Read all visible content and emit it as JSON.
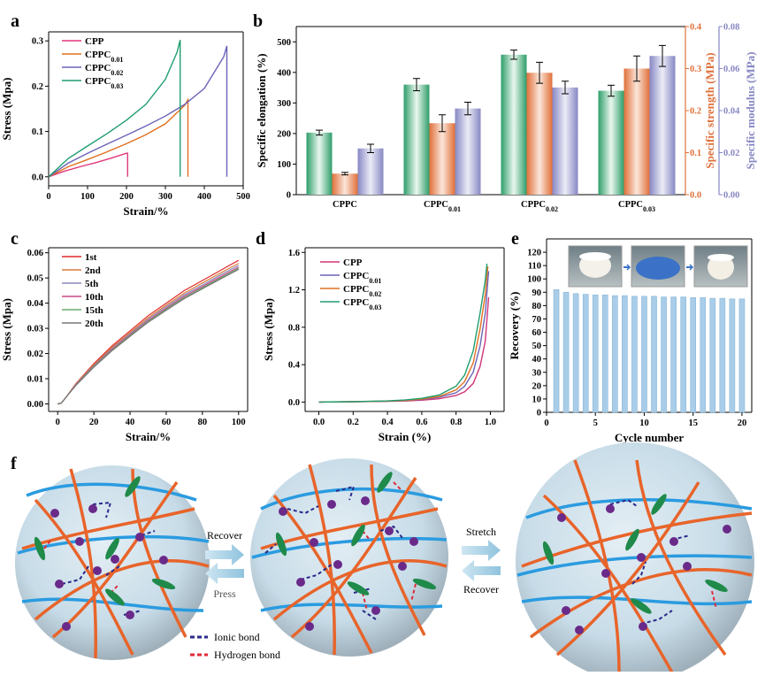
{
  "figure": {
    "panel_letters": [
      "a",
      "b",
      "c",
      "d",
      "e",
      "f"
    ]
  },
  "chart_data": [
    {
      "panel": "a",
      "type": "line",
      "xlabel": "Strain/%",
      "ylabel": "Stress (Mpa)",
      "xlim": [
        0,
        500
      ],
      "ylim": [
        -0.02,
        0.32
      ],
      "xticks": [
        0,
        100,
        200,
        300,
        400,
        500
      ],
      "yticks": [
        0.0,
        0.1,
        0.2,
        0.3
      ],
      "legend_position": "top-left",
      "series": [
        {
          "name": "CPP",
          "color": "#e0387a",
          "x": [
            0,
            40,
            80,
            120,
            160,
            200,
            203,
            203
          ],
          "y": [
            0,
            0.012,
            0.022,
            0.031,
            0.041,
            0.052,
            0.052,
            0.0
          ]
        },
        {
          "name": "CPPC0.01",
          "color": "#e07020",
          "x": [
            0,
            50,
            100,
            150,
            200,
            250,
            300,
            350,
            358,
            358
          ],
          "y": [
            0,
            0.022,
            0.038,
            0.055,
            0.073,
            0.093,
            0.117,
            0.158,
            0.17,
            0.0
          ]
        },
        {
          "name": "CPPC0.02",
          "color": "#6a63b8",
          "x": [
            0,
            50,
            100,
            150,
            200,
            250,
            300,
            350,
            400,
            450,
            458,
            458
          ],
          "y": [
            0,
            0.03,
            0.052,
            0.072,
            0.092,
            0.112,
            0.134,
            0.16,
            0.195,
            0.265,
            0.289,
            0.0
          ]
        },
        {
          "name": "CPPC0.03",
          "color": "#1f9e6e",
          "x": [
            0,
            50,
            100,
            150,
            200,
            250,
            300,
            330,
            338,
            338
          ],
          "y": [
            0,
            0.04,
            0.068,
            0.095,
            0.125,
            0.16,
            0.215,
            0.275,
            0.302,
            0.0
          ]
        }
      ]
    },
    {
      "panel": "b",
      "type": "bar",
      "categories": [
        "CPPC",
        "CPPC",
        "CPPC",
        "CPPC"
      ],
      "category_subscripts": [
        "",
        "0.01",
        "0.02",
        "0.03"
      ],
      "ylabel_left": "Specific elongation (%)",
      "ylabel_right1": "Specific strength (MPa)",
      "ylabel_right2": "Specific modulus (MPa)",
      "ylim_left": [
        0,
        550
      ],
      "ylim_right1": [
        0,
        0.4
      ],
      "ylim_right2": [
        0,
        0.08
      ],
      "yticks_left": [
        0,
        100,
        200,
        300,
        400,
        500
      ],
      "yticks_right1": [
        0.0,
        0.1,
        0.2,
        0.3,
        0.4
      ],
      "yticks_right2": [
        0.0,
        0.02,
        0.04,
        0.06,
        0.08
      ],
      "series": [
        {
          "name": "Specific elongation",
          "color": "#2e9e6a",
          "axis": "left",
          "values": [
            203,
            360,
            458,
            340
          ],
          "errors": [
            8,
            20,
            15,
            18
          ]
        },
        {
          "name": "Specific strength",
          "color": "#e0703a",
          "axis": "right1",
          "values": [
            0.05,
            0.17,
            0.29,
            0.3
          ],
          "errors": [
            0.003,
            0.02,
            0.025,
            0.03
          ]
        },
        {
          "name": "Specific modulus",
          "color": "#8787c4",
          "axis": "right2",
          "values": [
            0.022,
            0.041,
            0.051,
            0.066
          ],
          "errors": [
            0.002,
            0.003,
            0.003,
            0.005
          ]
        }
      ]
    },
    {
      "panel": "c",
      "type": "line",
      "xlabel": "Strain/%",
      "ylabel": "Stress (Mpa)",
      "xlim": [
        -5,
        105
      ],
      "ylim": [
        -0.003,
        0.062
      ],
      "xticks": [
        0,
        20,
        40,
        60,
        80,
        100
      ],
      "yticks": [
        0.0,
        0.01,
        0.02,
        0.03,
        0.04,
        0.05,
        0.06
      ],
      "ytick_labels": [
        "0.00",
        "0.01",
        "0.02",
        "0.03",
        "0.04",
        "0.05",
        "0.06"
      ],
      "legend_position": "top-left",
      "x": [
        0,
        2,
        5,
        10,
        20,
        30,
        40,
        50,
        60,
        70,
        80,
        90,
        100
      ],
      "series": [
        {
          "name": "1st",
          "color": "#e02a2a",
          "y": [
            0,
            0.0003,
            0.003,
            0.008,
            0.016,
            0.023,
            0.029,
            0.035,
            0.04,
            0.045,
            0.049,
            0.053,
            0.057
          ]
        },
        {
          "name": "2nd",
          "color": "#d87a3a",
          "y": [
            0,
            0.0003,
            0.003,
            0.0078,
            0.0156,
            0.0224,
            0.0283,
            0.0342,
            0.0392,
            0.044,
            0.048,
            0.052,
            0.0558
          ]
        },
        {
          "name": "5th",
          "color": "#8a8ab8",
          "y": [
            0,
            0.0003,
            0.003,
            0.0076,
            0.0152,
            0.0219,
            0.0278,
            0.0336,
            0.0386,
            0.0433,
            0.0472,
            0.0512,
            0.055
          ]
        },
        {
          "name": "10th",
          "color": "#c84a8a",
          "y": [
            0,
            0.0003,
            0.003,
            0.0075,
            0.015,
            0.0216,
            0.0274,
            0.0331,
            0.038,
            0.0427,
            0.0466,
            0.0505,
            0.0543
          ]
        },
        {
          "name": "15th",
          "color": "#6aa86a",
          "y": [
            0,
            0.0003,
            0.003,
            0.0074,
            0.0148,
            0.0213,
            0.0271,
            0.0327,
            0.0376,
            0.0422,
            0.0461,
            0.05,
            0.0538
          ]
        },
        {
          "name": "20th",
          "color": "#777777",
          "y": [
            0,
            0.0003,
            0.003,
            0.0073,
            0.0146,
            0.0211,
            0.0268,
            0.0324,
            0.0372,
            0.0418,
            0.0457,
            0.0496,
            0.0534
          ]
        }
      ]
    },
    {
      "panel": "d",
      "type": "line",
      "xlabel": "Strain (%)",
      "ylabel": "Stress (Mpa)",
      "xlim": [
        -0.08,
        1.08
      ],
      "ylim": [
        -0.1,
        1.65
      ],
      "xticks": [
        0.0,
        0.2,
        0.4,
        0.6,
        0.8,
        1.0
      ],
      "yticks": [
        0.0,
        0.4,
        0.8,
        1.2,
        1.6
      ],
      "legend_position": "top-left",
      "series": [
        {
          "name": "CPP",
          "color": "#d0357a",
          "x": [
            0,
            0.2,
            0.4,
            0.5,
            0.6,
            0.7,
            0.8,
            0.85,
            0.9,
            0.94,
            0.97,
            0.99
          ],
          "y": [
            0,
            0.003,
            0.008,
            0.012,
            0.02,
            0.035,
            0.07,
            0.11,
            0.2,
            0.38,
            0.65,
            1.12
          ]
        },
        {
          "name": "CPPC0.01",
          "color": "#6a63b8",
          "x": [
            0,
            0.2,
            0.4,
            0.5,
            0.6,
            0.7,
            0.8,
            0.85,
            0.9,
            0.94,
            0.97,
            0.99
          ],
          "y": [
            0,
            0.004,
            0.01,
            0.016,
            0.028,
            0.05,
            0.1,
            0.17,
            0.32,
            0.6,
            0.95,
            1.4
          ]
        },
        {
          "name": "CPPC0.02",
          "color": "#e07020",
          "x": [
            0,
            0.2,
            0.4,
            0.5,
            0.6,
            0.7,
            0.8,
            0.85,
            0.9,
            0.94,
            0.97,
            0.985
          ],
          "y": [
            0,
            0.004,
            0.011,
            0.018,
            0.032,
            0.06,
            0.13,
            0.22,
            0.42,
            0.78,
            1.15,
            1.45
          ]
        },
        {
          "name": "CPPC0.03",
          "color": "#1f9e6e",
          "x": [
            0,
            0.2,
            0.4,
            0.5,
            0.6,
            0.7,
            0.8,
            0.85,
            0.9,
            0.94,
            0.97,
            0.98
          ],
          "y": [
            0,
            0.005,
            0.013,
            0.022,
            0.04,
            0.075,
            0.17,
            0.29,
            0.55,
            0.95,
            1.3,
            1.48
          ]
        }
      ]
    },
    {
      "panel": "e",
      "type": "bar",
      "xlabel": "Cycle number",
      "ylabel": "Recovery (%)",
      "xlim": [
        0,
        21
      ],
      "ylim": [
        0,
        130
      ],
      "xticks": [
        0,
        5,
        10,
        15,
        20
      ],
      "yticks": [
        0,
        10,
        20,
        30,
        40,
        50,
        60,
        70,
        80,
        90,
        100,
        110,
        120
      ],
      "bar_color": "#a9cde8",
      "categories": [
        1,
        2,
        3,
        4,
        5,
        6,
        7,
        8,
        9,
        10,
        11,
        12,
        13,
        14,
        15,
        16,
        17,
        18,
        19,
        20
      ],
      "values": [
        92,
        90,
        89,
        88.5,
        88,
        88,
        87.5,
        87.5,
        87,
        87,
        87,
        86.5,
        86.5,
        86.5,
        86,
        86,
        85.5,
        85.5,
        85,
        85
      ]
    }
  ],
  "schematic": {
    "left_arrow_top": "Recover",
    "left_arrow_bottom": "Press",
    "right_arrow_top": "Stretch",
    "right_arrow_bottom": "Recover",
    "legend_ionic": "Ionic bond",
    "legend_hydrogen": "Hydrogen bond",
    "colors": {
      "blue_chain": "#2a9be0",
      "orange_chain": "#e8642a",
      "ionic": "#2a2a8a",
      "hydrogen": "#e02a3a",
      "ion": "#6a2a8a",
      "rod": "#1f8a4a"
    }
  }
}
